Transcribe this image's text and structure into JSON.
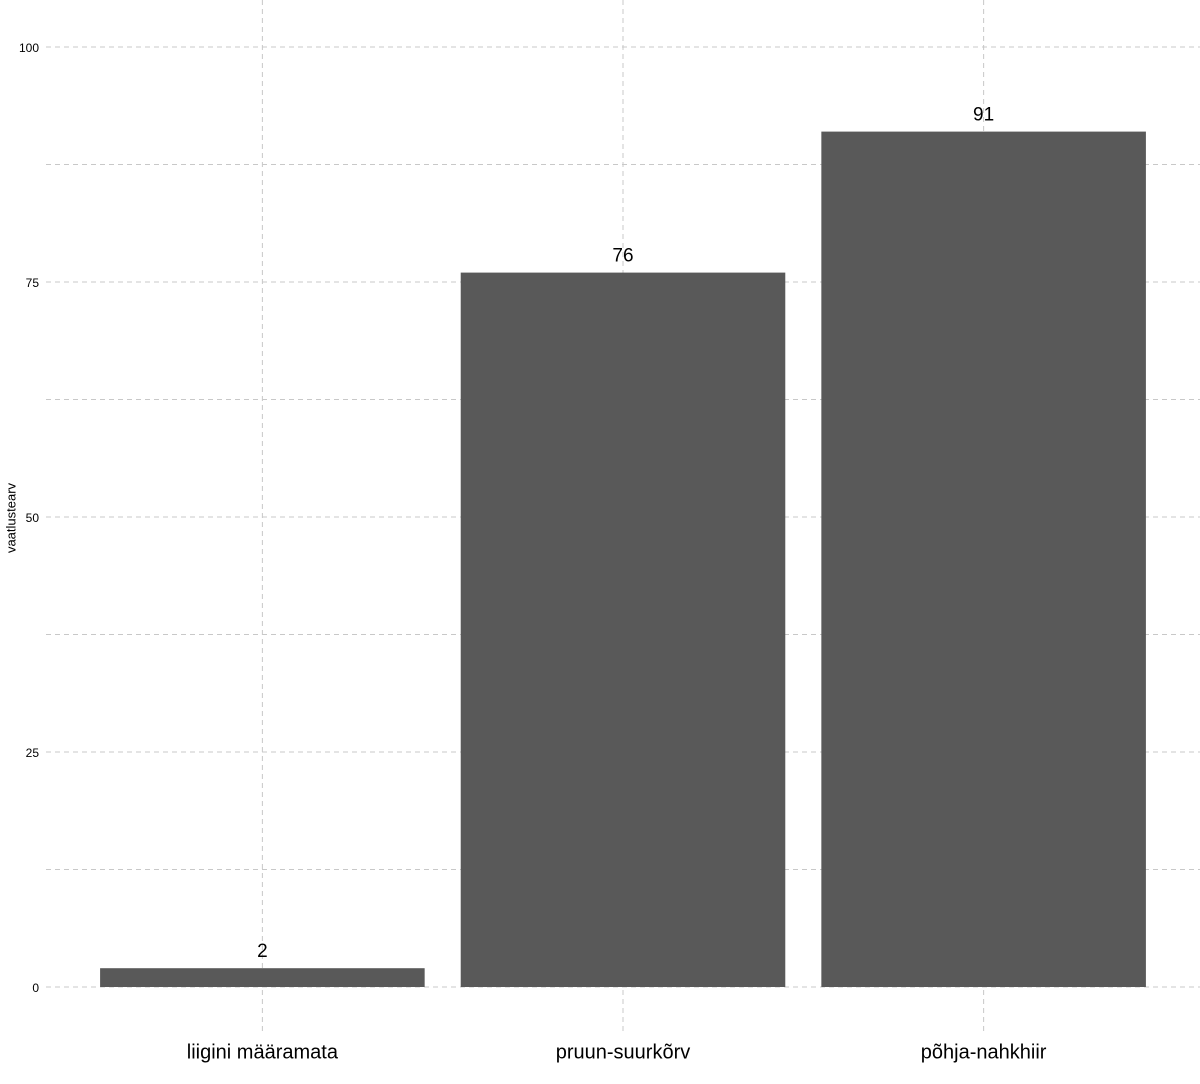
{
  "chart_data": {
    "type": "bar",
    "y_label": "vaatlustearv",
    "categories": [
      "liigini määramata",
      "pruun-suurkõrv",
      "põhja-nahkhiir"
    ],
    "values": [
      2,
      76,
      91
    ],
    "color": "#595959",
    "ylim": [
      -5,
      105
    ],
    "yticks": [
      0,
      25,
      50,
      75,
      100
    ],
    "minor_yticks": [
      12.5,
      37.5,
      62.5,
      87.5
    ],
    "grid": true
  }
}
